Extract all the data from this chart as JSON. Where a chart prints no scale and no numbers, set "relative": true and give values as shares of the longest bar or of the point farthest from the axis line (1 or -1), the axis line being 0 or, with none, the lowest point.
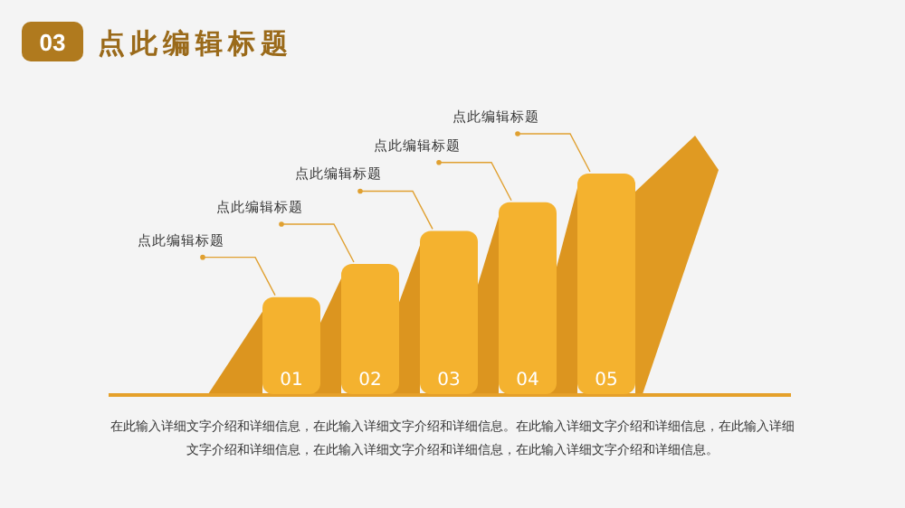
{
  "chart_data": {
    "type": "bar",
    "title": "点此编辑标题",
    "categories": [
      "01",
      "02",
      "03",
      "04",
      "05"
    ],
    "values": [
      0.44,
      0.59,
      0.74,
      0.87,
      1
    ],
    "relative": true,
    "color": "#f4b22f",
    "annotations": [
      "03",
      "点此编辑标题",
      "点此编辑标题",
      "点此编辑标题",
      "点此编辑标题",
      "点此编辑标题",
      "在此输入详细文字介绍和详细信息，在此输入详细文字介绍和详细信息。在此输入详细文字介绍和详细信息，在此输入详细文字介绍和详细信息，在此输入详细文字介绍和详细信息，在此输入详细文字介绍和详细信息。"
    ]
  }
}
